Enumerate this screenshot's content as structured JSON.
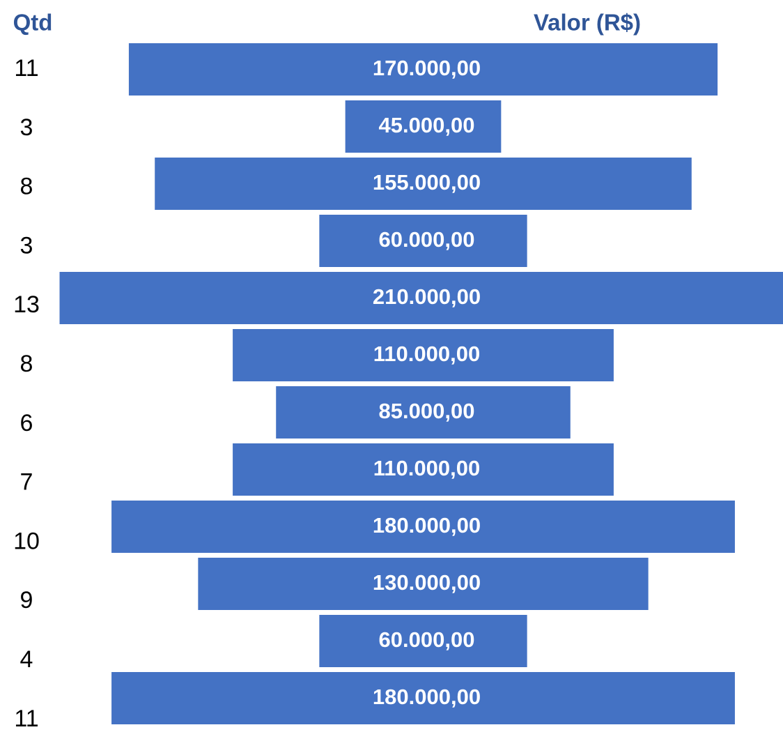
{
  "chart_data": {
    "type": "funnel",
    "qtd_header": "Qtd",
    "value_header": "Valor (R$)",
    "qtd": [
      11,
      3,
      8,
      3,
      13,
      8,
      6,
      7,
      10,
      9,
      4,
      11
    ],
    "values": [
      170000,
      45000,
      155000,
      60000,
      210000,
      110000,
      85000,
      110000,
      180000,
      130000,
      60000,
      180000
    ],
    "value_labels": [
      "170.000,00",
      "45.000,00",
      "155.000,00",
      "60.000,00",
      "210.000,00",
      "110.000,00",
      "85.000,00",
      "110.000,00",
      "180.000,00",
      "130.000,00",
      "60.000,00",
      "180.000,00"
    ],
    "color": "#4472c4"
  }
}
